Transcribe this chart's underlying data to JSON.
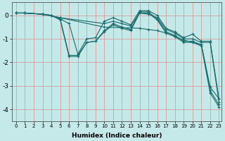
{
  "xlabel": "Humidex (Indice chaleur)",
  "ylabel": "",
  "bg_color": "#c5e8e8",
  "line_color": "#1a6b6b",
  "grid_color": "#d4a0a0",
  "xlim": [
    -0.5,
    23.3
  ],
  "ylim": [
    -4.5,
    0.55
  ],
  "yticks": [
    0,
    -1,
    -2,
    -3,
    -4
  ],
  "xticks": [
    0,
    1,
    2,
    3,
    4,
    5,
    6,
    7,
    8,
    9,
    10,
    11,
    12,
    13,
    14,
    15,
    16,
    17,
    18,
    19,
    20,
    21,
    22,
    23
  ],
  "lines": [
    {
      "x": [
        0,
        1,
        3,
        5,
        10,
        14,
        15,
        16,
        17,
        18,
        19,
        20,
        21,
        22,
        23
      ],
      "y": [
        0.1,
        0.1,
        0.05,
        -0.1,
        -0.5,
        -0.55,
        -0.6,
        -0.65,
        -0.75,
        -0.9,
        -1.05,
        -1.15,
        -1.25,
        -3.05,
        -3.55
      ]
    },
    {
      "x": [
        0,
        1,
        3,
        5,
        10,
        11,
        12,
        13,
        14,
        15,
        16,
        17,
        18,
        19,
        20,
        21,
        22,
        23
      ],
      "y": [
        0.1,
        0.1,
        0.05,
        -0.1,
        -0.35,
        -0.25,
        -0.35,
        -0.45,
        0.1,
        0.05,
        -0.1,
        -0.6,
        -0.75,
        -1.0,
        -1.0,
        -1.15,
        -1.15,
        -3.7
      ]
    },
    {
      "x": [
        0,
        1,
        3,
        4,
        5,
        6,
        7,
        8,
        9,
        10,
        11,
        12,
        13,
        14,
        15,
        16,
        17,
        18,
        19,
        20,
        21,
        22,
        23
      ],
      "y": [
        0.1,
        0.1,
        0.05,
        0.0,
        -0.15,
        -1.7,
        -1.7,
        -1.15,
        -1.1,
        -0.65,
        -0.35,
        -0.5,
        -0.6,
        0.15,
        0.15,
        -0.15,
        -0.7,
        -0.85,
        -1.1,
        -1.1,
        -1.25,
        -3.2,
        -3.8
      ]
    },
    {
      "x": [
        0,
        1,
        3,
        4,
        5,
        6,
        7,
        8,
        9,
        10,
        11,
        12,
        13,
        14,
        15,
        16,
        17,
        18,
        19,
        20,
        21,
        22,
        23
      ],
      "y": [
        0.1,
        0.1,
        0.05,
        0.0,
        -0.2,
        -1.75,
        -1.75,
        -1.15,
        -1.1,
        -0.7,
        -0.4,
        -0.55,
        -0.65,
        0.1,
        0.1,
        -0.2,
        -0.75,
        -0.9,
        -1.15,
        -1.15,
        -1.3,
        -3.3,
        -3.9
      ]
    },
    {
      "x": [
        0,
        1,
        3,
        4,
        5,
        6,
        7,
        8,
        9,
        10,
        11,
        12,
        13,
        14,
        15,
        16,
        17,
        18,
        19,
        20,
        21,
        22,
        23
      ],
      "y": [
        0.1,
        0.1,
        0.05,
        0.0,
        -0.15,
        -0.35,
        -1.65,
        -1.0,
        -0.95,
        -0.25,
        -0.1,
        -0.25,
        -0.4,
        0.2,
        0.2,
        0.0,
        -0.55,
        -0.7,
        -0.95,
        -0.8,
        -1.1,
        -1.1,
        -3.55
      ]
    }
  ]
}
